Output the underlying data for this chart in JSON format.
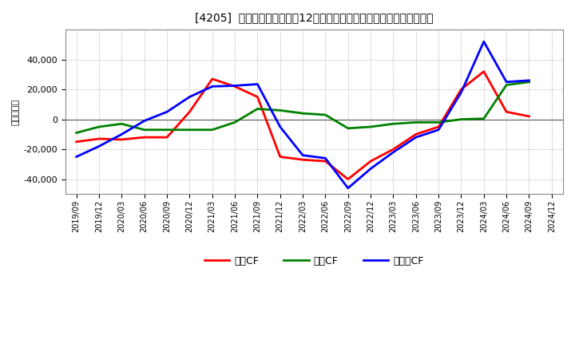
{
  "title": "[4205]  キャッシュフローの12か月移動合計の対前年同期増減額の推移",
  "ylabel": "（百万円）",
  "background_color": "#ffffff",
  "plot_bg_color": "#ffffff",
  "grid_color": "#999999",
  "ylim": [
    -50000,
    60000
  ],
  "yticks": [
    -40000,
    -20000,
    0,
    20000,
    40000
  ],
  "x_labels": [
    "2019/09",
    "2019/12",
    "2020/03",
    "2020/06",
    "2020/09",
    "2020/12",
    "2021/03",
    "2021/06",
    "2021/09",
    "2021/12",
    "2022/03",
    "2022/06",
    "2022/09",
    "2022/12",
    "2023/03",
    "2023/06",
    "2023/09",
    "2023/12",
    "2024/03",
    "2024/06",
    "2024/09",
    "2024/12"
  ],
  "operating_cf": [
    -15000,
    -13000,
    -13500,
    -12000,
    -12000,
    5000,
    27000,
    22000,
    15000,
    -25000,
    -27000,
    -28000,
    -40000,
    -28000,
    -20000,
    -10000,
    -5000,
    20000,
    32000,
    5000,
    2000,
    null
  ],
  "investing_cf": [
    -9000,
    -5000,
    -3000,
    -7000,
    -7000,
    -7000,
    -7000,
    -2000,
    7000,
    6000,
    4000,
    3000,
    -6000,
    -5000,
    -3000,
    -2000,
    -2000,
    0,
    500,
    23000,
    25000,
    null
  ],
  "free_cf": [
    -25000,
    -18000,
    -10000,
    -1000,
    5000,
    15000,
    22000,
    22500,
    23500,
    -5000,
    -24000,
    -26000,
    -46000,
    -33000,
    -22000,
    -12000,
    -7000,
    18000,
    52000,
    25000,
    26000,
    null
  ],
  "line_colors": {
    "operating": "#ff0000",
    "investing": "#008000",
    "free": "#0000ff"
  },
  "legend_labels": {
    "operating": "営業CF",
    "investing": "投資CF",
    "free": "フリーCF"
  },
  "line_width": 2.0
}
